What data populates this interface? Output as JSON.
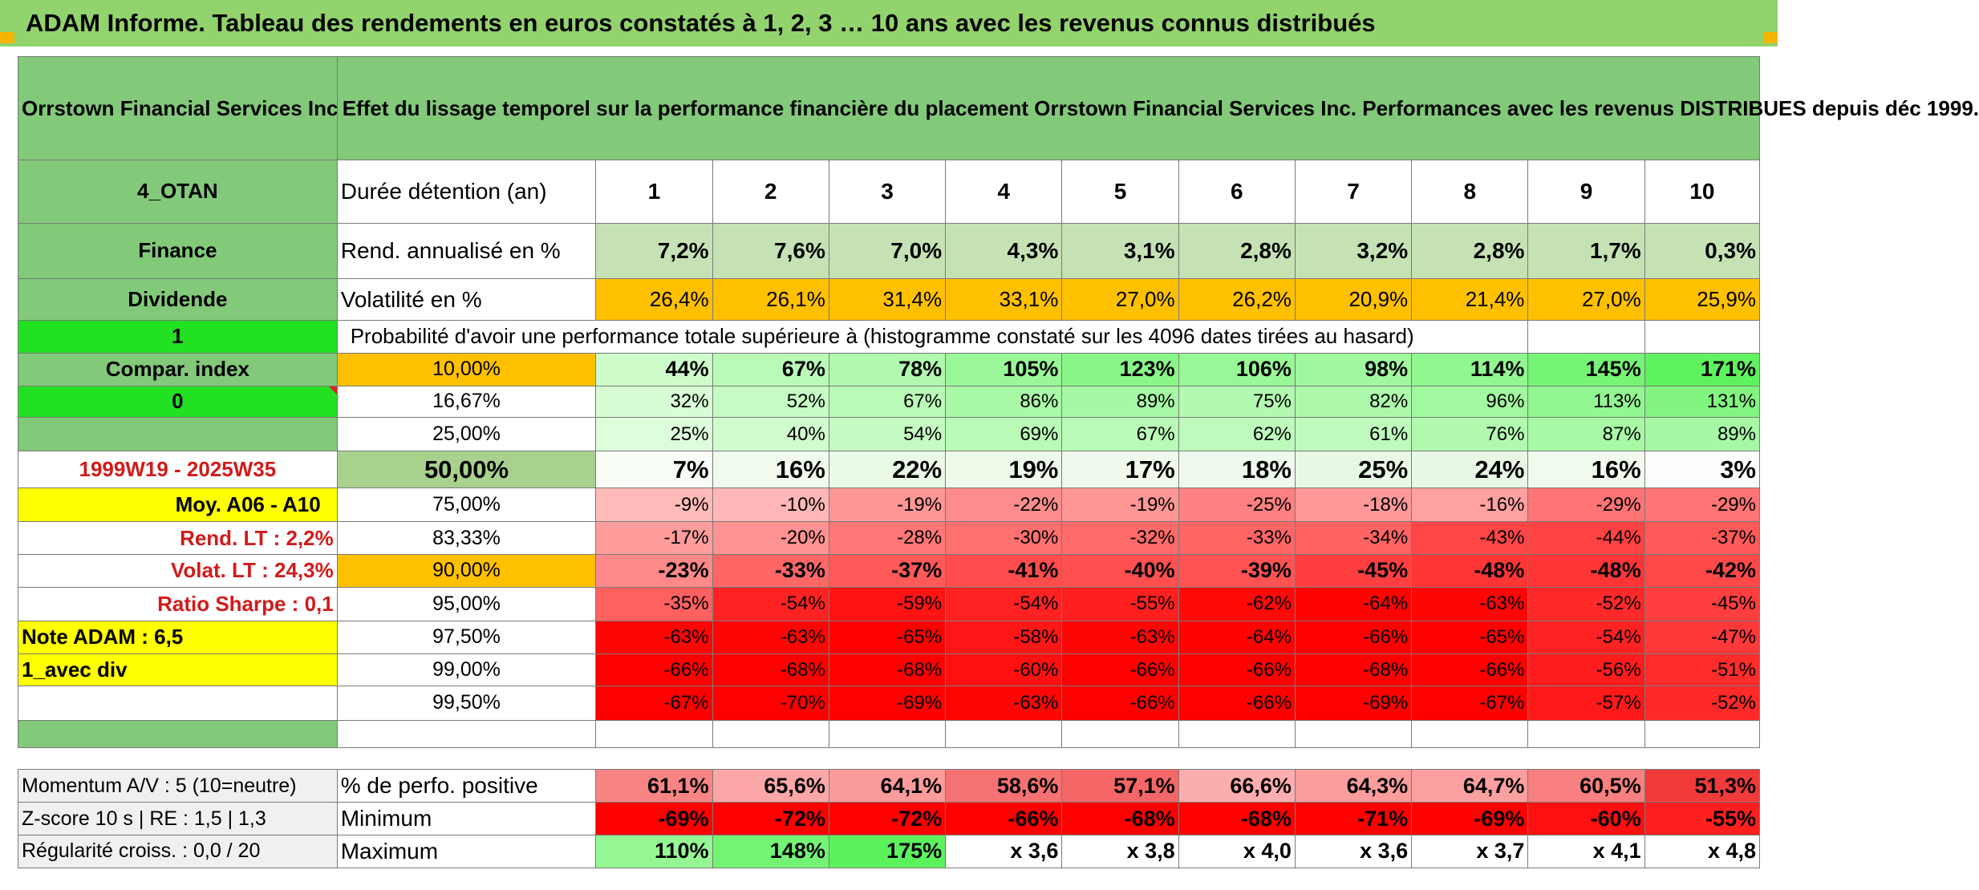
{
  "banner": "ADAM Informe. Tableau des rendements en euros constatés à 1, 2, 3 … 10 ans avec les revenus connus distribués",
  "company": "Orrstown Financial Services Inc",
  "description": "Effet du lissage temporel sur la performance financière du placement Orrstown Financial Services Inc. Performances avec les revenus DISTRIBUES depuis déc 1999.",
  "side": {
    "code": "4_OTAN",
    "sector": "Finance",
    "type": "Dividende",
    "flag1": "1",
    "compar": "Compar. index",
    "flag0": "0",
    "period": "1999W19 - 2025W35",
    "moy": "Moy. A06 - A10",
    "rend_lt": "Rend. LT :   2,2%",
    "volat_lt": "Volat. LT :   24,3%",
    "sharpe": "Ratio Sharpe :   0,1",
    "note": "Note ADAM : 6,5",
    "avec_div": "1_avec div",
    "momentum": "Momentum A/V : 5 (10=neutre)",
    "zscore": "Z-score 10 s | RE : 1,5 | 1,3",
    "regularite": "Régularité croiss. : 0,0 / 20"
  },
  "labels": {
    "duree": "Durée détention (an)",
    "rend": "Rend. annualisé en %",
    "volat": "Volatilité en %",
    "proba": "Probabilité d'avoir une performance totale supérieure à (histogramme constaté sur les 4096 dates tirées au hasard)",
    "pct_pos": "% de perfo. positive",
    "minimum": "Minimum",
    "maximum": "Maximum"
  },
  "years": [
    "1",
    "2",
    "3",
    "4",
    "5",
    "6",
    "7",
    "8",
    "9",
    "10"
  ],
  "rend": [
    "7,2%",
    "7,6%",
    "7,0%",
    "4,3%",
    "3,1%",
    "2,8%",
    "3,2%",
    "2,8%",
    "1,7%",
    "0,3%"
  ],
  "volat": [
    "26,4%",
    "26,1%",
    "31,4%",
    "33,1%",
    "27,0%",
    "26,2%",
    "20,9%",
    "21,4%",
    "27,0%",
    "25,9%"
  ],
  "percentiles": [
    {
      "p": "10,00%",
      "v": [
        "44%",
        "67%",
        "78%",
        "105%",
        "123%",
        "106%",
        "98%",
        "114%",
        "145%",
        "171%"
      ]
    },
    {
      "p": "16,67%",
      "v": [
        "32%",
        "52%",
        "67%",
        "86%",
        "89%",
        "75%",
        "82%",
        "96%",
        "113%",
        "131%"
      ]
    },
    {
      "p": "25,00%",
      "v": [
        "25%",
        "40%",
        "54%",
        "69%",
        "67%",
        "62%",
        "61%",
        "76%",
        "87%",
        "89%"
      ]
    },
    {
      "p": "50,00%",
      "v": [
        "7%",
        "16%",
        "22%",
        "19%",
        "17%",
        "18%",
        "25%",
        "24%",
        "16%",
        "3%"
      ]
    },
    {
      "p": "75,00%",
      "v": [
        "-9%",
        "-10%",
        "-19%",
        "-22%",
        "-19%",
        "-25%",
        "-18%",
        "-16%",
        "-29%",
        "-29%"
      ]
    },
    {
      "p": "83,33%",
      "v": [
        "-17%",
        "-20%",
        "-28%",
        "-30%",
        "-32%",
        "-33%",
        "-34%",
        "-43%",
        "-44%",
        "-37%"
      ]
    },
    {
      "p": "90,00%",
      "v": [
        "-23%",
        "-33%",
        "-37%",
        "-41%",
        "-40%",
        "-39%",
        "-45%",
        "-48%",
        "-48%",
        "-42%"
      ]
    },
    {
      "p": "95,00%",
      "v": [
        "-35%",
        "-54%",
        "-59%",
        "-54%",
        "-55%",
        "-62%",
        "-64%",
        "-63%",
        "-52%",
        "-45%"
      ]
    },
    {
      "p": "97,50%",
      "v": [
        "-63%",
        "-63%",
        "-65%",
        "-58%",
        "-63%",
        "-64%",
        "-66%",
        "-65%",
        "-54%",
        "-47%"
      ]
    },
    {
      "p": "99,00%",
      "v": [
        "-66%",
        "-68%",
        "-68%",
        "-60%",
        "-66%",
        "-66%",
        "-68%",
        "-66%",
        "-56%",
        "-51%"
      ]
    },
    {
      "p": "99,50%",
      "v": [
        "-67%",
        "-70%",
        "-69%",
        "-63%",
        "-66%",
        "-66%",
        "-69%",
        "-67%",
        "-57%",
        "-52%"
      ]
    }
  ],
  "pct_pos": [
    "61,1%",
    "65,6%",
    "64,1%",
    "58,6%",
    "57,1%",
    "66,6%",
    "64,3%",
    "64,7%",
    "60,5%",
    "51,3%"
  ],
  "minimum": [
    "-69%",
    "-72%",
    "-72%",
    "-66%",
    "-68%",
    "-68%",
    "-71%",
    "-69%",
    "-60%",
    "-55%"
  ],
  "maximum": [
    "110%",
    "148%",
    "175%",
    "x 3,6",
    "x 3,8",
    "x 4,0",
    "x 3,6",
    "x 3,7",
    "x 4,1",
    "x 4,8"
  ]
}
